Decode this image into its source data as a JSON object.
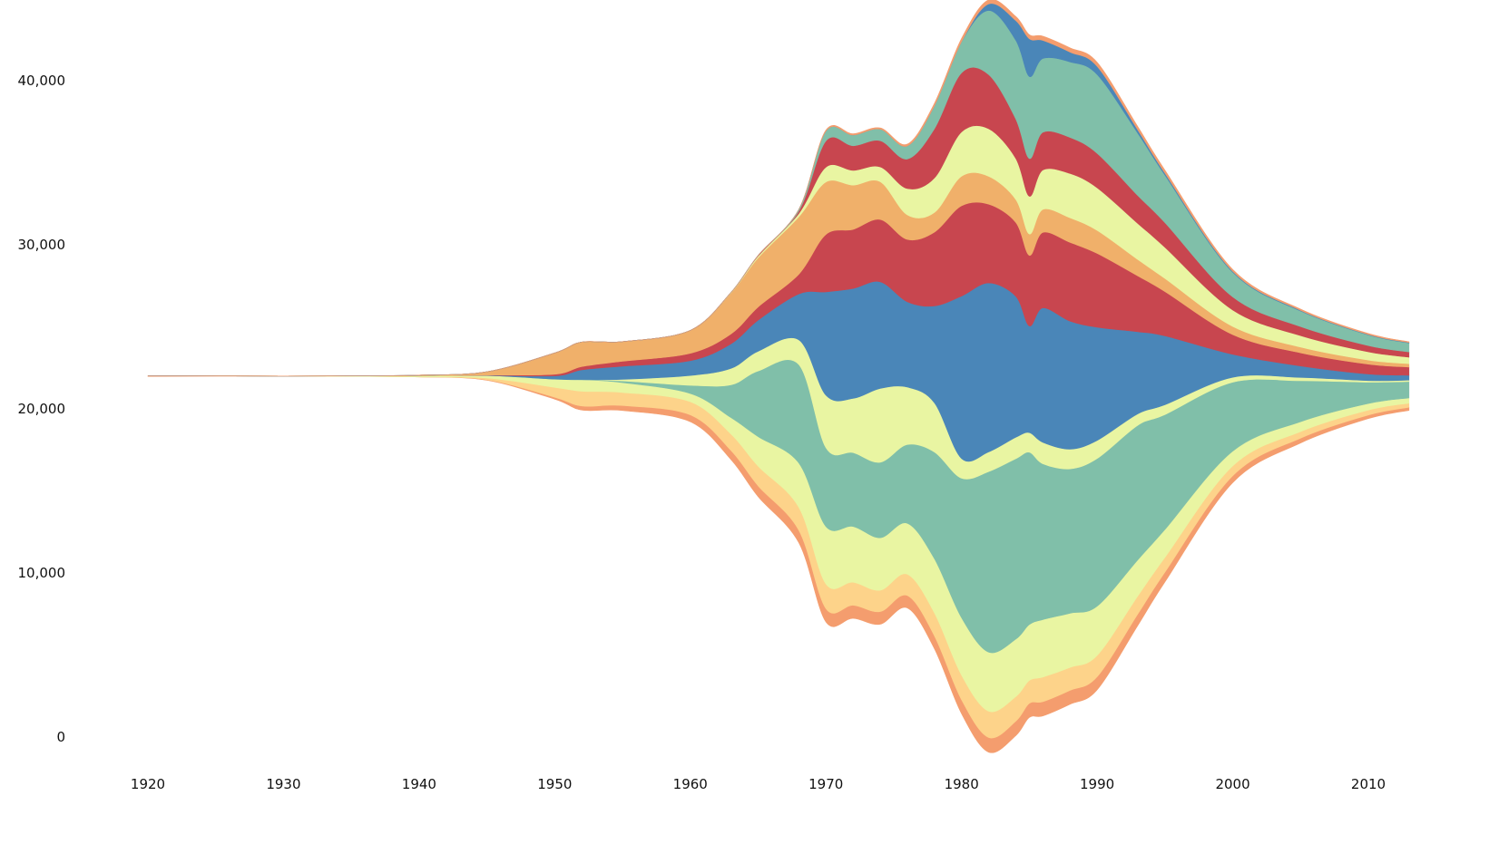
{
  "chart_data": {
    "type": "area",
    "subtype": "streamgraph",
    "title": "",
    "xlabel": "",
    "ylabel": "",
    "grid": false,
    "legend": "none",
    "xlim": [
      1918,
      2013
    ],
    "ylim": [
      0,
      44000
    ],
    "baseline_center": 22000,
    "x_ticks": [
      1920,
      1930,
      1940,
      1950,
      1960,
      1970,
      1980,
      1990,
      2000,
      2010
    ],
    "x_tick_labels": [
      "1920",
      "1930",
      "1940",
      "1950",
      "1960",
      "1970",
      "1980",
      "1990",
      "2000",
      "2010"
    ],
    "y_ticks": [
      0,
      10000,
      20000,
      30000,
      40000
    ],
    "y_tick_labels": [
      "0",
      "10,000",
      "20,000",
      "30,000",
      "40,000"
    ],
    "x": [
      1920,
      1930,
      1935,
      1940,
      1945,
      1950,
      1952,
      1955,
      1960,
      1963,
      1965,
      1968,
      1970,
      1972,
      1974,
      1976,
      1978,
      1980,
      1982,
      1984,
      1985,
      1986,
      1988,
      1990,
      1993,
      1995,
      2000,
      2005,
      2010,
      2013
    ],
    "series": [
      {
        "color": "#f49d6e",
        "values": [
          40,
          0,
          0,
          0,
          40,
          120,
          250,
          300,
          420,
          560,
          660,
          760,
          820,
          800,
          770,
          760,
          790,
          850,
          900,
          880,
          860,
          870,
          850,
          800,
          700,
          600,
          420,
          300,
          220,
          190
        ]
      },
      {
        "color": "#fdd38a",
        "values": [
          0,
          0,
          0,
          10,
          100,
          600,
          900,
          800,
          800,
          1000,
          1200,
          1400,
          1500,
          1400,
          1300,
          1300,
          1400,
          1500,
          1600,
          1500,
          1400,
          1500,
          1400,
          1300,
          1100,
          900,
          600,
          400,
          300,
          250
        ]
      },
      {
        "color": "#e9f5a2",
        "values": [
          0,
          0,
          30,
          70,
          150,
          500,
          700,
          600,
          500,
          1000,
          1800,
          2700,
          3500,
          3400,
          3200,
          3100,
          3300,
          3500,
          3600,
          3500,
          3400,
          3500,
          3300,
          3000,
          2200,
          1700,
          900,
          600,
          400,
          320
        ]
      },
      {
        "color": "#80bfa9",
        "values": [
          0,
          0,
          0,
          0,
          0,
          0,
          0,
          100,
          500,
          2000,
          4000,
          6000,
          4800,
          4500,
          4600,
          4800,
          6500,
          8500,
          11000,
          11000,
          10500,
          9500,
          8800,
          9000,
          8200,
          7000,
          4200,
          2500,
          1300,
          1000
        ]
      },
      {
        "color": "#e9f5a2",
        "values": [
          0,
          0,
          0,
          0,
          0,
          0,
          0,
          100,
          600,
          1000,
          1200,
          1500,
          3200,
          3300,
          4500,
          3500,
          3000,
          1200,
          1200,
          1300,
          1200,
          1300,
          1200,
          1100,
          700,
          600,
          300,
          200,
          100,
          80
        ]
      },
      {
        "color": "#4a86b8",
        "values": [
          0,
          0,
          0,
          0,
          20,
          200,
          600,
          800,
          900,
          1500,
          1900,
          2800,
          6300,
          6700,
          6500,
          5200,
          5900,
          9900,
          10300,
          8600,
          6500,
          8200,
          7800,
          6900,
          5000,
          4200,
          1400,
          700,
          400,
          300
        ]
      },
      {
        "color": "#c8464f",
        "values": [
          0,
          0,
          0,
          0,
          10,
          100,
          200,
          300,
          450,
          600,
          800,
          1200,
          3500,
          3600,
          3800,
          3800,
          4500,
          5500,
          4800,
          4500,
          4300,
          4600,
          4800,
          4500,
          3400,
          2700,
          1200,
          800,
          600,
          500
        ]
      },
      {
        "color": "#f0b06a",
        "values": [
          0,
          0,
          0,
          30,
          200,
          1300,
          1500,
          1200,
          1400,
          2500,
          3000,
          3500,
          3200,
          2700,
          2300,
          1500,
          1200,
          1800,
          1700,
          1400,
          1300,
          1400,
          1500,
          1400,
          1000,
          800,
          500,
          350,
          250,
          200
        ]
      },
      {
        "color": "#e9f5a2",
        "values": [
          0,
          0,
          0,
          0,
          0,
          0,
          0,
          0,
          0,
          30,
          100,
          200,
          900,
          900,
          900,
          1600,
          2100,
          2700,
          2900,
          2500,
          2300,
          2400,
          2700,
          2600,
          2200,
          1900,
          1000,
          700,
          500,
          400
        ]
      },
      {
        "color": "#c8464f",
        "values": [
          0,
          0,
          0,
          0,
          0,
          0,
          0,
          0,
          0,
          0,
          40,
          150,
          1600,
          1500,
          1600,
          1800,
          3000,
          3600,
          3300,
          2400,
          2300,
          2300,
          2200,
          2100,
          1700,
          1500,
          800,
          550,
          380,
          320
        ]
      },
      {
        "color": "#80bfa9",
        "values": [
          0,
          0,
          0,
          0,
          0,
          0,
          0,
          0,
          0,
          0,
          0,
          100,
          600,
          650,
          700,
          800,
          1400,
          1900,
          3900,
          4800,
          5000,
          4500,
          4600,
          4800,
          3800,
          2900,
          1500,
          950,
          650,
          550
        ]
      },
      {
        "color": "#4a86b8",
        "values": [
          0,
          0,
          0,
          0,
          0,
          0,
          0,
          0,
          0,
          0,
          0,
          0,
          0,
          0,
          0,
          0,
          0,
          0,
          400,
          1200,
          2300,
          1100,
          600,
          500,
          200,
          120,
          60,
          40,
          30,
          25
        ]
      },
      {
        "color": "#f49d6e",
        "values": [
          0,
          0,
          0,
          0,
          0,
          0,
          0,
          0,
          0,
          0,
          0,
          0,
          60,
          80,
          80,
          110,
          150,
          200,
          250,
          250,
          250,
          260,
          260,
          250,
          200,
          180,
          110,
          80,
          60,
          50
        ]
      }
    ]
  }
}
